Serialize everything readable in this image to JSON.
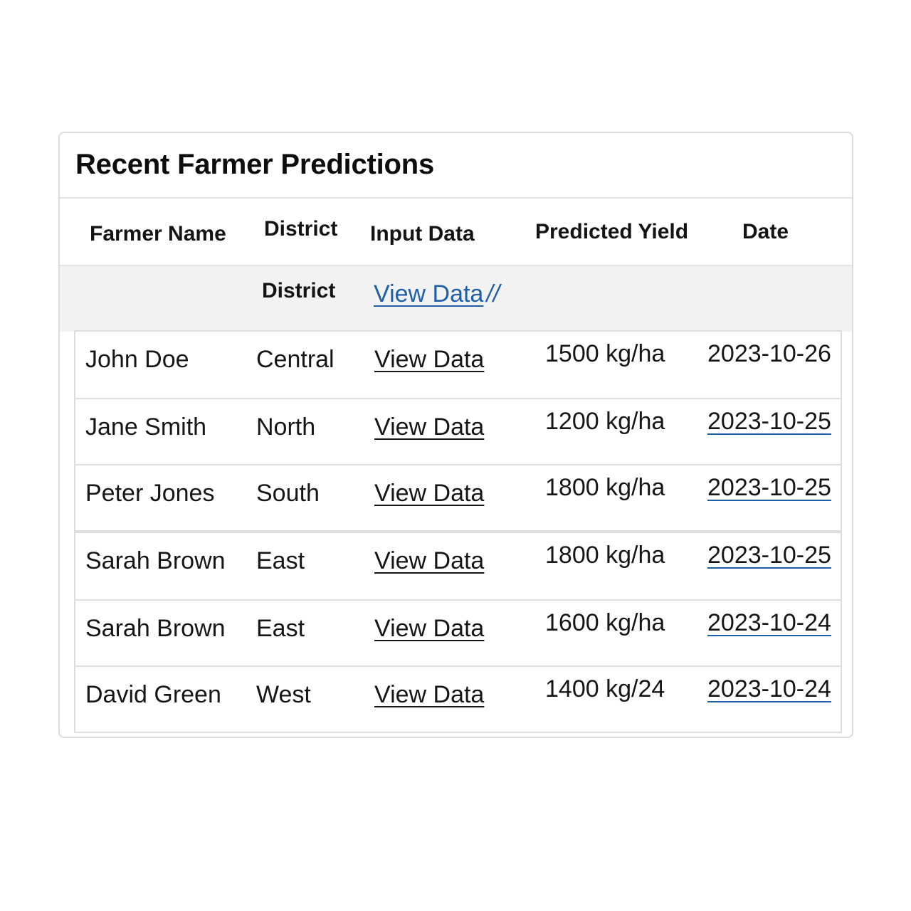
{
  "panel": {
    "title": "Recent Farmer Predictions"
  },
  "columns": {
    "farmer_name": "Farmer Name",
    "district": "District",
    "input_data": "Input Data",
    "predicted_yield": "Predicted Yield",
    "date": "Date"
  },
  "subheader": {
    "district": "District",
    "input_link": "View Data",
    "input_suffix": "//"
  },
  "rows": [
    {
      "name": "John Doe",
      "district": "Central",
      "input": "View Data",
      "yield": "1500 kg/ha",
      "date": "2023-10-26",
      "date_linked": false
    },
    {
      "name": "Jane Smith",
      "district": "North",
      "input": "View Data",
      "yield": "1200 kg/ha",
      "date": "2023-10-25",
      "date_linked": true
    },
    {
      "name": "Peter Jones",
      "district": "South",
      "input": "View Data",
      "yield": "1800 kg/ha",
      "date": "2023-10-25",
      "date_linked": true
    },
    {
      "name": "Sarah Brown",
      "district": "East",
      "input": "View Data",
      "yield": "1800 kg/ha",
      "date": "2023-10-25",
      "date_linked": true
    },
    {
      "name": "Sarah Brown",
      "district": "East",
      "input": "View Data",
      "yield": "1600 kg/ha",
      "date": "2023-10-24",
      "date_linked": true
    },
    {
      "name": "David Green",
      "district": "West",
      "input": "View Data",
      "yield": "1400 kg/24",
      "date": "2023-10-24",
      "date_linked": true
    }
  ],
  "colors": {
    "link": "#1f5fa8",
    "border": "#dedede",
    "subheader_bg": "#f2f2f2"
  }
}
